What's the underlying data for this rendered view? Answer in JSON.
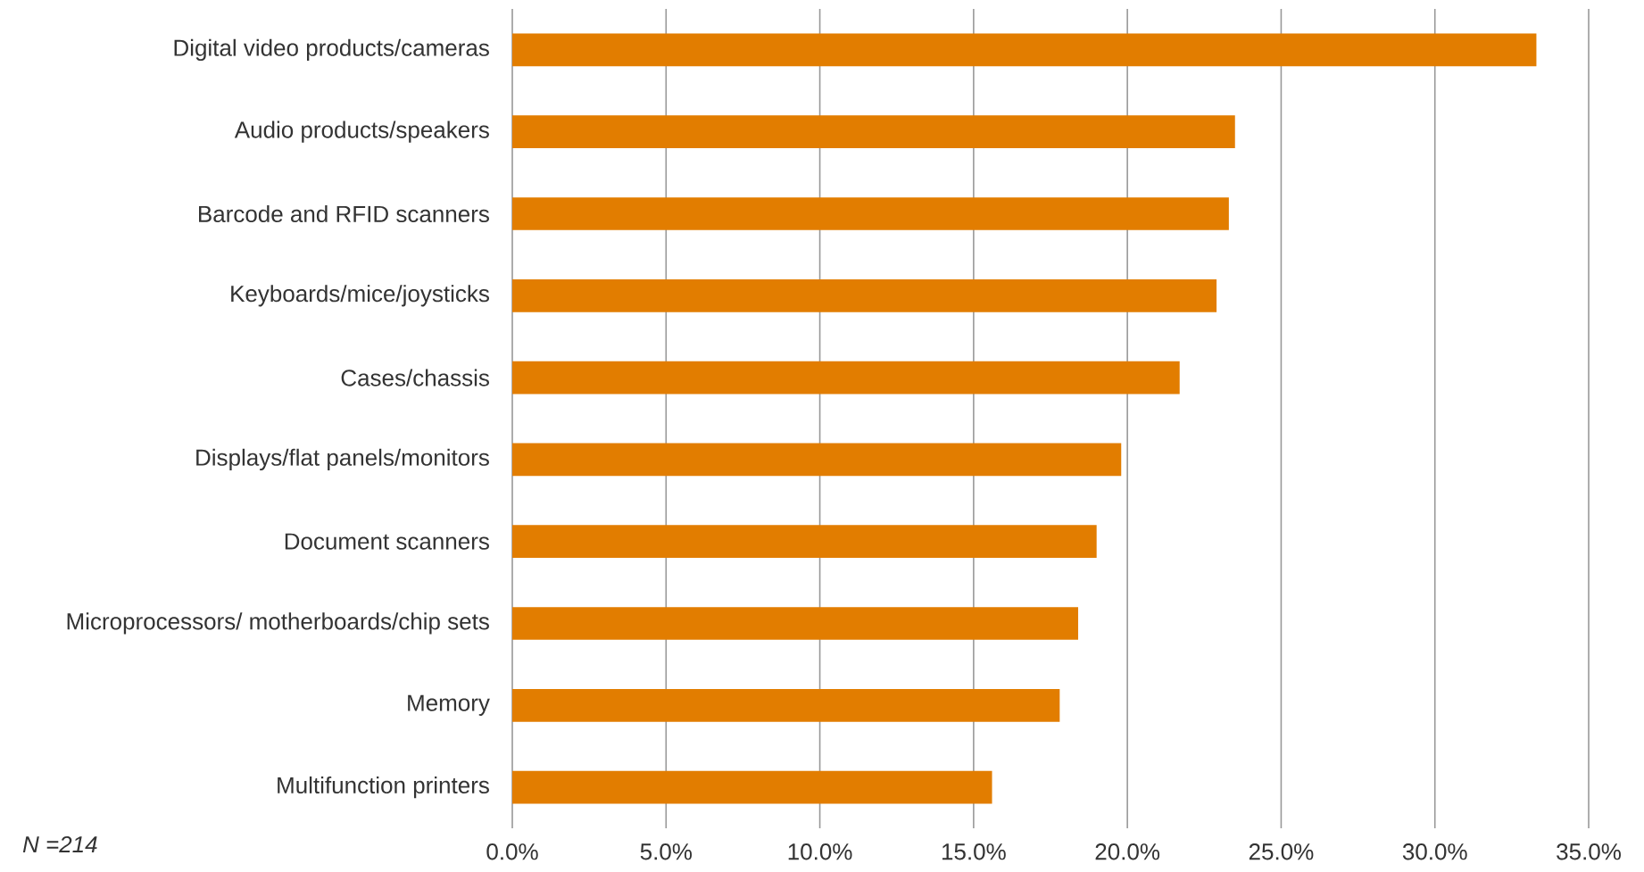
{
  "chart_data": {
    "type": "bar",
    "orientation": "horizontal",
    "categories": [
      "Digital video products/cameras",
      "Audio products/speakers",
      "Barcode and RFID scanners",
      "Keyboards/mice/joysticks",
      "Cases/chassis",
      "Displays/flat panels/monitors",
      "Document scanners",
      "Microprocessors/ motherboards/chip sets",
      "Memory",
      "Multifunction printers"
    ],
    "values": [
      33.3,
      23.5,
      23.3,
      22.9,
      21.7,
      19.8,
      19.0,
      18.4,
      17.8,
      15.6
    ],
    "color": "#e27d00",
    "xlim": [
      0,
      35
    ],
    "xticks": [
      {
        "value": 0,
        "label": "0.0%"
      },
      {
        "value": 5,
        "label": "5.0%"
      },
      {
        "value": 10,
        "label": "10.0%"
      },
      {
        "value": 15,
        "label": "15.0%"
      },
      {
        "value": 20,
        "label": "20.0%"
      },
      {
        "value": 25,
        "label": "25.0%"
      },
      {
        "value": 30,
        "label": "30.0%"
      },
      {
        "value": 35,
        "label": "35.0%"
      }
    ],
    "grid": "x",
    "annotations": [
      "N =214"
    ]
  }
}
